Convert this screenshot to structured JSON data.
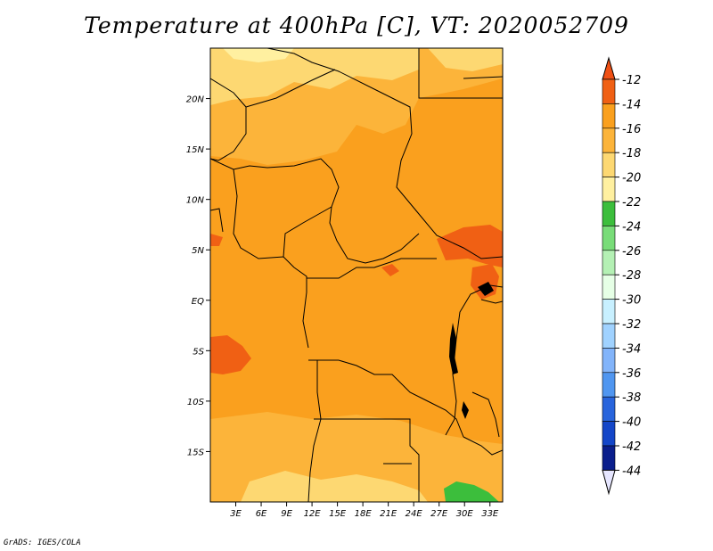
{
  "title": "Temperature at 400hPa [C], VT: 2020052709",
  "credit": "GrADS: IGES/COLA",
  "map": {
    "lon_range": [
      0,
      34.5
    ],
    "lat_range": [
      -20,
      25
    ],
    "x_ticks": [
      "3E",
      "6E",
      "9E",
      "12E",
      "15E",
      "18E",
      "21E",
      "24E",
      "27E",
      "30E",
      "33E"
    ],
    "x_tick_values": [
      3,
      6,
      9,
      12,
      15,
      18,
      21,
      24,
      27,
      30,
      33
    ],
    "y_ticks": [
      "20N",
      "15N",
      "10N",
      "5N",
      "EQ",
      "5S",
      "10S",
      "15S"
    ],
    "y_tick_values": [
      20,
      15,
      10,
      5,
      0,
      -5,
      -10,
      -15
    ],
    "background_color": "#faa01e"
  },
  "colorbar": {
    "labels": [
      "-12",
      "-14",
      "-16",
      "-18",
      "-20",
      "-22",
      "-24",
      "-26",
      "-28",
      "-30",
      "-32",
      "-34",
      "-36",
      "-38",
      "-40",
      "-42",
      "-44"
    ],
    "colors": [
      "#f06014",
      "#faa01e",
      "#fcb43a",
      "#fdd872",
      "#fff0a0",
      "#3cbe3c",
      "#78dc78",
      "#b4f0b4",
      "#e6ffe6",
      "#c8f0ff",
      "#a0d2ff",
      "#82b4fa",
      "#5096f0",
      "#2864dc",
      "#1446c8",
      "#0a1e8c",
      "#141460"
    ],
    "top_arrow_color": "#f05014",
    "bottom_arrow_color": "#e6e6ff"
  }
}
